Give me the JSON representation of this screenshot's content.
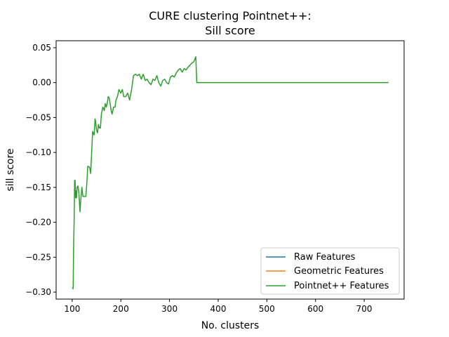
{
  "chart_data": {
    "type": "line",
    "title_line1": "CURE clustering Pointnet++:",
    "title_line2": "Sill score",
    "xlabel": "No. clusters",
    "ylabel": "sill score",
    "xlim": [
      67,
      782
    ],
    "ylim": [
      -0.31,
      0.06
    ],
    "xticks": [
      100,
      200,
      300,
      400,
      500,
      600,
      700
    ],
    "yticks": [
      0.05,
      0.0,
      -0.05,
      -0.1,
      -0.15,
      -0.2,
      -0.25,
      -0.3
    ],
    "ytick_labels": [
      "0.05",
      "0.00",
      "−0.05",
      "−0.10",
      "−0.15",
      "−0.20",
      "−0.25",
      "−0.30"
    ],
    "grid": false,
    "legend_position": "lower right",
    "series": [
      {
        "name": "Raw Features",
        "color": "#1f77b4",
        "x": [],
        "values": []
      },
      {
        "name": "Geometric Features",
        "color": "#ff7f0e",
        "x": [],
        "values": []
      },
      {
        "name": "Pointnet++ Features",
        "color": "#2ca02c",
        "x": [
          100,
          102,
          103,
          104,
          105,
          106,
          107,
          108,
          109,
          110,
          112,
          114,
          116,
          118,
          120,
          122,
          125,
          128,
          130,
          132,
          134,
          136,
          138,
          140,
          142,
          145,
          147,
          148,
          150,
          152,
          154,
          156,
          158,
          160,
          163,
          166,
          168,
          170,
          172,
          174,
          176,
          178,
          180,
          182,
          185,
          188,
          190,
          193,
          196,
          200,
          203,
          206,
          210,
          214,
          218,
          222,
          226,
          230,
          234,
          238,
          242,
          246,
          250,
          254,
          258,
          262,
          266,
          270,
          274,
          278,
          282,
          286,
          290,
          294,
          298,
          302,
          306,
          310,
          314,
          318,
          322,
          326,
          330,
          334,
          338,
          342,
          346,
          350,
          354,
          356,
          358,
          360,
          360.5,
          400,
          500,
          600,
          700,
          750
        ],
        "values": [
          -0.294,
          -0.295,
          -0.23,
          -0.2,
          -0.14,
          -0.14,
          -0.165,
          -0.155,
          -0.165,
          -0.15,
          -0.148,
          -0.16,
          -0.185,
          -0.165,
          -0.15,
          -0.163,
          -0.163,
          -0.163,
          -0.145,
          -0.12,
          -0.12,
          -0.122,
          -0.13,
          -0.1,
          -0.07,
          -0.075,
          -0.052,
          -0.055,
          -0.068,
          -0.072,
          -0.06,
          -0.065,
          -0.065,
          -0.045,
          -0.035,
          -0.04,
          -0.03,
          -0.035,
          -0.03,
          -0.02,
          -0.022,
          -0.03,
          -0.04,
          -0.045,
          -0.035,
          -0.035,
          -0.025,
          -0.02,
          -0.01,
          -0.015,
          -0.01,
          -0.02,
          -0.02,
          -0.015,
          -0.025,
          -0.01,
          0.01,
          0.012,
          0.01,
          0.012,
          0.005,
          0.012,
          0.003,
          0.005,
          0.0,
          -0.003,
          0.005,
          0.003,
          0.01,
          0.0,
          -0.005,
          0.003,
          0.005,
          0.0,
          -0.002,
          0.008,
          0.01,
          0.008,
          0.014,
          0.018,
          0.02,
          0.015,
          0.02,
          0.018,
          0.022,
          0.025,
          0.028,
          0.03,
          0.037,
          0.0,
          0.0,
          0.0,
          0.0,
          0.0,
          0.0,
          0.0,
          0.0,
          0.0
        ]
      }
    ]
  }
}
